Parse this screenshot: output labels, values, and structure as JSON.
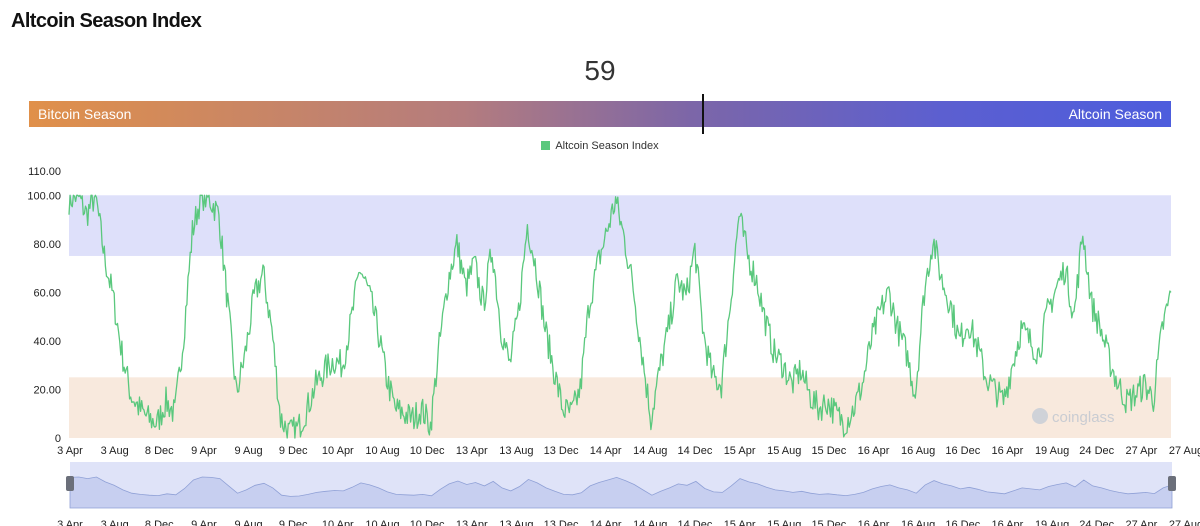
{
  "page": {
    "title": "Altcoin Season Index"
  },
  "gauge": {
    "value": "59",
    "left_label": "Bitcoin Season",
    "right_label": "Altcoin Season"
  },
  "colors": {
    "line": "#5ac87d",
    "altcoin_band": "#dee0fa",
    "bitcoin_band": "#f8e9dd",
    "navigator_fill": "#dfe3f8",
    "navigator_line": "#8fa0d6"
  },
  "chart_data": {
    "type": "line",
    "title": "Altcoin Season Index",
    "legend": [
      "Altcoin Season Index"
    ],
    "legend_position": "top-center",
    "ylim": [
      0,
      110
    ],
    "y_ticks": [
      "0",
      "20.00",
      "40.00",
      "60.00",
      "80.00",
      "100.00",
      "110.00"
    ],
    "x_ticks": [
      "3 Apr",
      "3 Aug",
      "8 Dec",
      "9 Apr",
      "9 Aug",
      "9 Dec",
      "10 Apr",
      "10 Aug",
      "10 Dec",
      "13 Apr",
      "13 Aug",
      "13 Dec",
      "14 Apr",
      "14 Aug",
      "14 Dec",
      "15 Apr",
      "15 Aug",
      "15 Dec",
      "16 Apr",
      "16 Aug",
      "16 Dec",
      "16 Apr",
      "19 Aug",
      "24 Dec",
      "27 Apr",
      "27 Aug"
    ],
    "bands": [
      {
        "name": "Altcoin Season",
        "from": 75,
        "to": 100
      },
      {
        "name": "Bitcoin Season",
        "from": 0,
        "to": 25
      }
    ],
    "watermark": "coinglass",
    "series": [
      {
        "name": "Altcoin Season Index",
        "x": [
          0,
          1,
          2,
          3,
          4,
          5,
          6,
          7,
          8,
          9,
          10,
          11,
          12,
          13,
          14,
          15,
          16,
          17,
          18,
          19,
          20,
          21,
          22,
          23,
          24,
          25,
          26,
          27,
          28,
          29,
          30,
          31,
          32,
          33,
          34,
          35,
          36,
          37,
          38,
          39,
          40,
          41,
          42,
          43,
          44,
          45,
          46,
          47,
          48,
          49,
          50,
          51,
          52,
          53,
          54,
          55,
          56,
          57,
          58,
          59,
          60,
          61,
          62,
          63,
          64,
          65,
          66,
          67,
          68,
          69,
          70,
          71,
          72,
          73,
          74,
          75,
          76,
          77,
          78,
          79,
          80,
          81,
          82,
          83,
          84,
          85,
          86,
          87,
          88,
          89,
          90,
          91,
          92,
          93,
          94,
          95,
          96,
          97,
          98,
          99,
          100,
          101,
          102,
          103,
          104,
          105,
          106,
          107,
          108,
          109,
          110,
          111,
          112,
          113,
          114,
          115,
          116,
          117,
          118,
          119,
          120,
          121,
          122,
          123,
          124,
          125
        ],
        "values": [
          98,
          100,
          92,
          100,
          75,
          58,
          35,
          18,
          12,
          8,
          6,
          15,
          10,
          42,
          85,
          100,
          98,
          92,
          55,
          18,
          35,
          58,
          68,
          45,
          8,
          2,
          4,
          12,
          22,
          28,
          32,
          30,
          48,
          70,
          60,
          45,
          25,
          12,
          10,
          8,
          12,
          5,
          38,
          65,
          80,
          62,
          72,
          55,
          78,
          45,
          30,
          52,
          88,
          70,
          45,
          28,
          12,
          10,
          20,
          55,
          72,
          85,
          98,
          82,
          62,
          35,
          8,
          28,
          45,
          65,
          58,
          78,
          42,
          25,
          22,
          55,
          92,
          75,
          65,
          48,
          35,
          30,
          22,
          28,
          18,
          12,
          15,
          10,
          6,
          12,
          22,
          40,
          52,
          60,
          45,
          35,
          18,
          60,
          82,
          65,
          55,
          40,
          48,
          38,
          25,
          20,
          15,
          30,
          45,
          40,
          35,
          52,
          62,
          70,
          50,
          85,
          55,
          45,
          32,
          22,
          15,
          18,
          22,
          16,
          45,
          60
        ]
      }
    ]
  }
}
